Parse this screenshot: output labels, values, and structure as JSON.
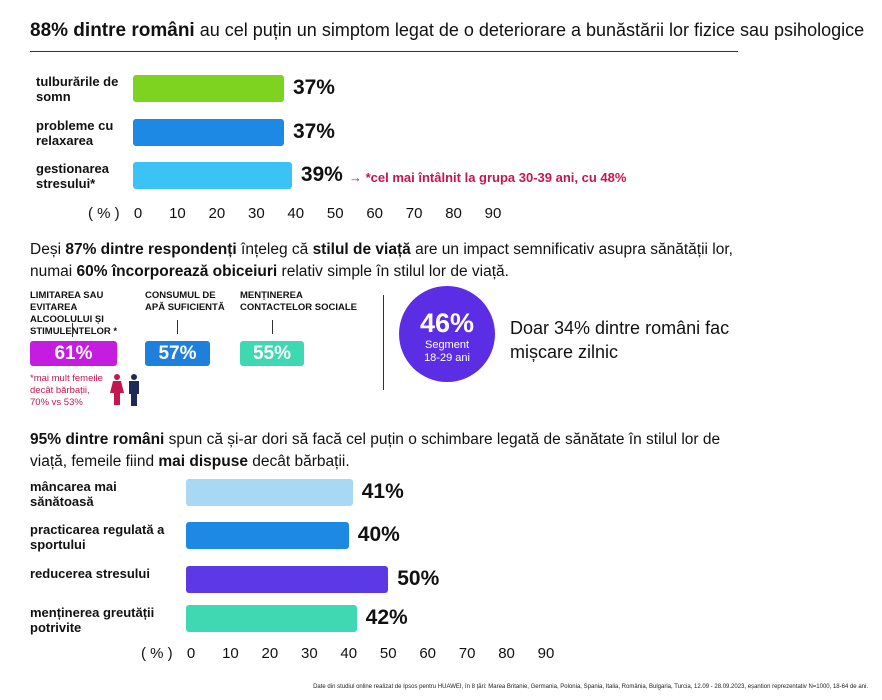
{
  "header": {
    "title_bold": "88% dintre români",
    "title_rest": "au cel puțin un simptom legat de o deteriorare a bunăstării lor fizice sau psihologice"
  },
  "chart_data": [
    {
      "type": "bar",
      "orientation": "horizontal",
      "categories": [
        "tulburările de somn",
        "probleme cu relaxarea",
        "gestionarea stresului*"
      ],
      "values": [
        37,
        37,
        39
      ],
      "value_labels": [
        "37%",
        "37%",
        "39%"
      ],
      "colors": [
        "#7ed321",
        "#1e88e5",
        "#3bc3f5"
      ],
      "xlim": [
        0,
        90
      ],
      "ticks": [
        "0",
        "10",
        "20",
        "30",
        "40",
        "50",
        "60",
        "70",
        "80",
        "90"
      ],
      "axis_unit": "( % )",
      "annotation": "→ *cel mai întâlnit la grupa 30-39 ani, cu 48%"
    },
    {
      "type": "bar",
      "orientation": "horizontal",
      "categories": [
        "mâncarea mai sănătoasă",
        "practicarea regulată a sportului",
        "reducerea stresului",
        "menținerea greutății potrivite"
      ],
      "values": [
        41,
        40,
        50,
        42
      ],
      "value_labels": [
        "41%",
        "40%",
        "50%",
        "42%"
      ],
      "colors": [
        "#a9d8f5",
        "#1e88e5",
        "#5b3ae6",
        "#3ed9b3"
      ],
      "xlim": [
        0,
        90
      ],
      "ticks": [
        "0",
        "10",
        "20",
        "30",
        "40",
        "50",
        "60",
        "70",
        "80",
        "90"
      ],
      "axis_unit": "( % )"
    }
  ],
  "middle": {
    "para1": [
      {
        "t": "Deși ",
        "b": false
      },
      {
        "t": "87% dintre respondenți",
        "b": true
      },
      {
        "t": " înțeleg că ",
        "b": false
      },
      {
        "t": "stilul de viață",
        "b": true
      },
      {
        "t": " are un impact semnificativ asupra sănătății lor,",
        "b": false
      }
    ],
    "para2": [
      {
        "t": "numai ",
        "b": false
      },
      {
        "t": "60% încorporează obiceiuri",
        "b": true
      },
      {
        "t": " relativ simple în stilul lor de viață.",
        "b": false
      }
    ],
    "habits": [
      {
        "label": "LIMITAREA SAU EVITAREA ALCOOLULUI ȘI STIMULENTELOR *",
        "value": "61%",
        "color": "#c41de0"
      },
      {
        "label": "CONSUMUL DE APĂ SUFICIENTĂ",
        "value": "57%",
        "color": "#1e7fdc"
      },
      {
        "label": "MENȚINEREA CONTACTELOR SOCIALE",
        "value": "55%",
        "color": "#3ed9b3"
      }
    ],
    "habit_note": "*mai mult femeile decât bărbații, 70% vs 53%",
    "circle": {
      "value": "46%",
      "line1": "Segment",
      "line2": "18-29 ani",
      "color": "#5b2ee6"
    },
    "stat": "Doar 34% dintre români fac mișcare zilnic"
  },
  "lower": {
    "para1": [
      {
        "t": "95% dintre români",
        "b": true
      },
      {
        "t": " spun că și-ar dori să facă cel puțin o schimbare legată de sănătate în stilul lor de",
        "b": false
      }
    ],
    "para2": [
      {
        "t": "viață, femeile fiind ",
        "b": false
      },
      {
        "t": "mai dispuse",
        "b": true
      },
      {
        "t": " decât bărbații.",
        "b": false
      }
    ]
  },
  "footer": "Date din studiul online realizat de Ipsos pentru HUAWEI, în 8 țări: Marea Britanie, Germania, Polonia, Spania, Italia, România, Bulgaria, Turcia, 12.09 - 28.09.2023, eșantion reprezentativ N=1000, 18-64 de ani."
}
